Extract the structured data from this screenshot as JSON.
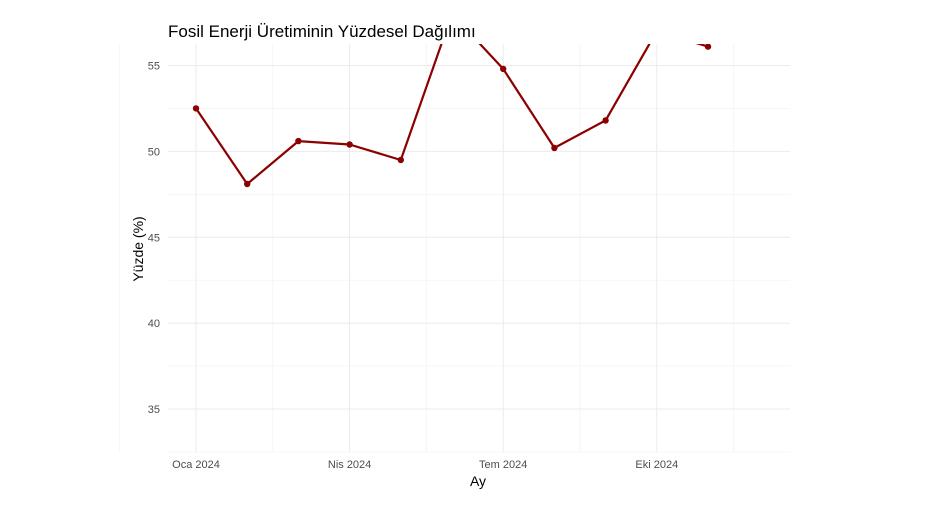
{
  "chart_data": {
    "type": "line",
    "title": "Fosil Enerji Üretiminin Yüzdesel Dağılımı",
    "xlabel": "Ay",
    "ylabel": "Yüzde (%)",
    "x_tick_labels": [
      "Oca 2024",
      "Nis 2024",
      "Tem 2024",
      "Eki 2024"
    ],
    "y_tick_labels": [
      "35",
      "40",
      "45",
      "50",
      "55"
    ],
    "ylim": [
      32.5,
      56.25
    ],
    "grid": true,
    "line_color": "#8B0000",
    "series": [
      {
        "x": [
          "2024-01",
          "2024-02",
          "2024-03",
          "2024-04",
          "2024-05",
          "2024-06",
          "2024-07",
          "2024-08",
          "2024-09",
          "2024-10",
          "2024-11"
        ],
        "values": [
          52.5,
          48.1,
          50.6,
          50.4,
          49.5,
          58.0,
          54.8,
          50.2,
          51.8,
          57.0,
          56.1
        ]
      }
    ]
  }
}
